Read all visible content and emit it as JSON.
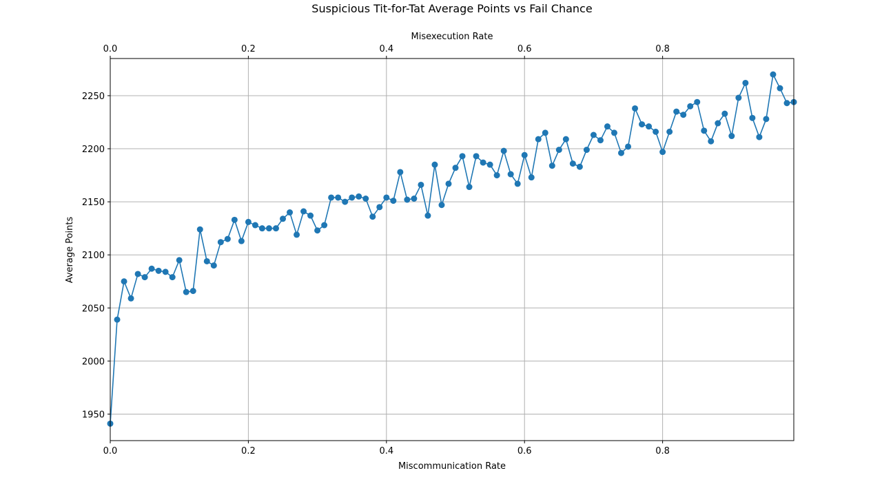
{
  "chart_data": {
    "type": "line",
    "title": "Suspicious Tit-for-Tat Average Points vs Fail Chance",
    "xlabel": "Miscommunication Rate",
    "xlabel_top": "Misexecution Rate",
    "ylabel": "Average Points",
    "xlim": [
      0,
      0.99
    ],
    "ylim": [
      1925,
      2285
    ],
    "xticks": [
      0.0,
      0.2,
      0.4,
      0.6,
      0.8
    ],
    "xtick_labels": [
      "0.0",
      "0.2",
      "0.4",
      "0.6",
      "0.8"
    ],
    "yticks": [
      1950,
      2000,
      2050,
      2100,
      2150,
      2200,
      2250
    ],
    "ytick_labels": [
      "1950",
      "2000",
      "2050",
      "2100",
      "2150",
      "2200",
      "2250"
    ],
    "grid": true,
    "line_color": "#1f77b4",
    "series": [
      {
        "x": [
          0.0,
          0.01,
          0.02,
          0.03,
          0.04,
          0.05,
          0.06,
          0.07,
          0.08,
          0.09,
          0.1,
          0.11,
          0.12,
          0.13,
          0.14,
          0.15,
          0.16,
          0.17,
          0.18,
          0.19,
          0.2,
          0.21,
          0.22,
          0.23,
          0.24,
          0.25,
          0.26,
          0.27,
          0.28,
          0.29,
          0.3,
          0.31,
          0.32,
          0.33,
          0.34,
          0.35,
          0.36,
          0.37,
          0.38,
          0.39,
          0.4,
          0.41,
          0.42,
          0.43,
          0.44,
          0.45,
          0.46,
          0.47,
          0.48,
          0.49,
          0.5,
          0.51,
          0.52,
          0.53,
          0.54,
          0.55,
          0.56,
          0.57,
          0.58,
          0.59,
          0.6,
          0.61,
          0.62,
          0.63,
          0.64,
          0.65,
          0.66,
          0.67,
          0.68,
          0.69,
          0.7,
          0.71,
          0.72,
          0.73,
          0.74,
          0.75,
          0.76,
          0.77,
          0.78,
          0.79,
          0.8,
          0.81,
          0.82,
          0.83,
          0.84,
          0.85,
          0.86,
          0.87,
          0.88,
          0.89,
          0.9,
          0.91,
          0.92,
          0.93,
          0.94,
          0.95,
          0.96,
          0.97,
          0.98,
          0.99
        ],
        "y": [
          1941,
          2039,
          2075,
          2059,
          2082,
          2079,
          2087,
          2085,
          2084,
          2079,
          2095,
          2065,
          2066,
          2124,
          2094,
          2090,
          2112,
          2115,
          2133,
          2113,
          2131,
          2128,
          2125,
          2125,
          2125,
          2134,
          2140,
          2119,
          2141,
          2137,
          2123,
          2128,
          2154,
          2154,
          2150,
          2154,
          2155,
          2153,
          2136,
          2145,
          2154,
          2151,
          2178,
          2152,
          2153,
          2166,
          2137,
          2185,
          2147,
          2167,
          2182,
          2193,
          2164,
          2193,
          2187,
          2185,
          2175,
          2198,
          2176,
          2167,
          2194,
          2173,
          2209,
          2215,
          2184,
          2199,
          2209,
          2186,
          2183,
          2199,
          2213,
          2208,
          2221,
          2215,
          2196,
          2202,
          2238,
          2223,
          2221,
          2216,
          2197,
          2216,
          2235,
          2232,
          2240,
          2244,
          2217,
          2207,
          2224,
          2233,
          2212,
          2248,
          2262,
          2229,
          2211,
          2228,
          2270,
          2257,
          2243,
          2244
        ]
      }
    ]
  }
}
